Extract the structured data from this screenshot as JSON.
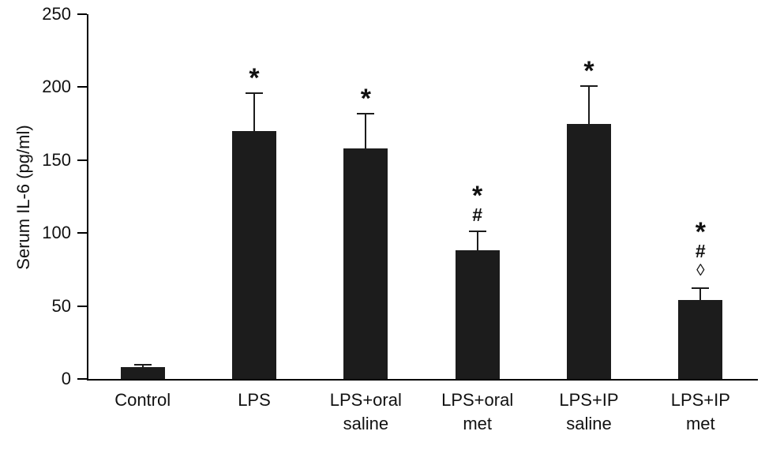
{
  "chart_data": {
    "type": "bar",
    "title": "",
    "ylabel": "Serum IL-6 (pg/ml)",
    "xlabel": "",
    "ylim": [
      0,
      250
    ],
    "yticks": [
      0,
      50,
      100,
      150,
      200,
      250
    ],
    "categories": [
      "Control",
      "LPS",
      "LPS+oral saline",
      "LPS+oral met",
      "LPS+IP saline",
      "LPS+IP met"
    ],
    "category_lines": [
      [
        "Control"
      ],
      [
        "LPS"
      ],
      [
        "LPS+oral",
        "saline"
      ],
      [
        "LPS+oral",
        "met"
      ],
      [
        "LPS+IP",
        "saline"
      ],
      [
        "LPS+IP",
        "met"
      ]
    ],
    "values": [
      8,
      170,
      158,
      88,
      175,
      54
    ],
    "errors_plus": [
      2,
      26,
      24,
      13,
      26,
      8
    ],
    "significance": [
      [],
      [
        "*"
      ],
      [
        "*"
      ],
      [
        "*",
        "#"
      ],
      [
        "*"
      ],
      [
        "*",
        "#",
        "◊"
      ]
    ],
    "bar_color": "#1c1c1c",
    "axis_color": "#000000",
    "grid": false,
    "legend": "none"
  }
}
